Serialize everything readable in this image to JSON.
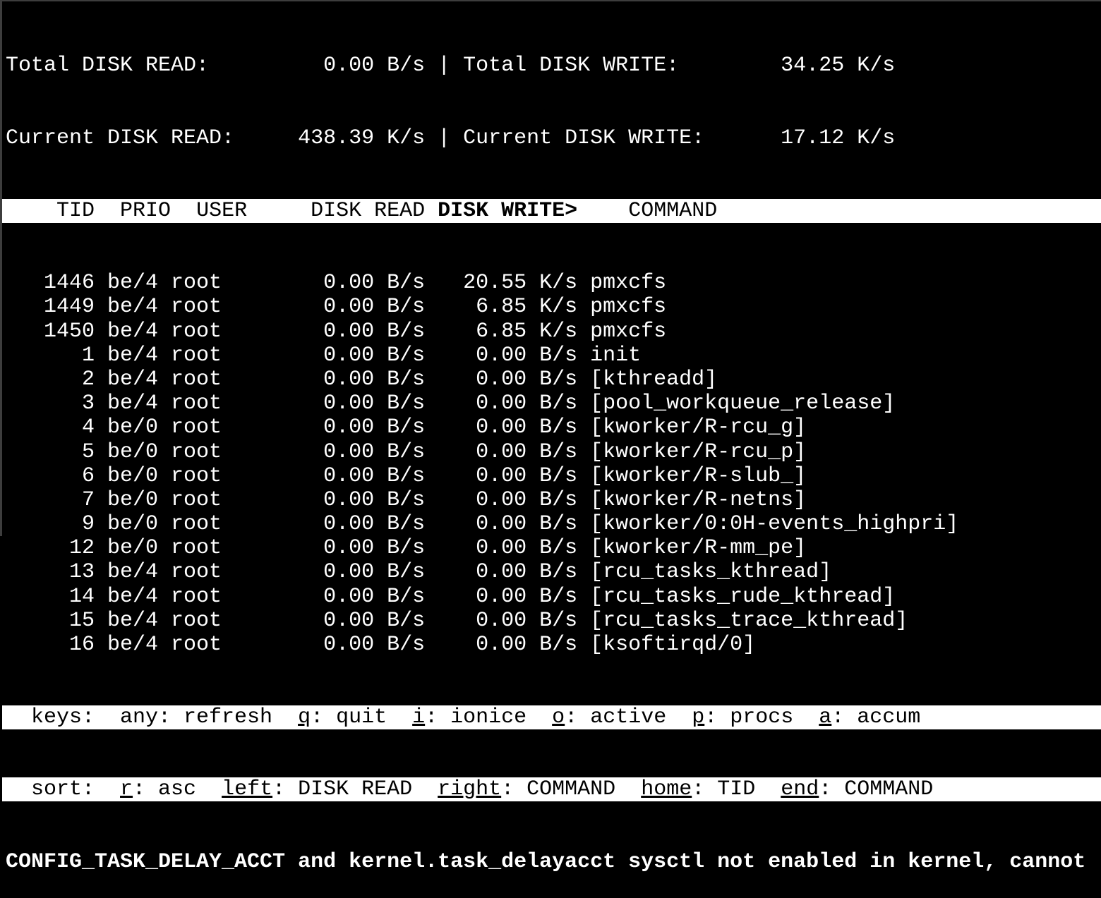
{
  "app": "iotop",
  "colors": {
    "background": "#000000",
    "foreground": "#ffffff",
    "bar_background": "#ffffff",
    "bar_foreground": "#000000",
    "border": "#3d3d3d"
  },
  "summary": {
    "separator": "|",
    "rows": [
      {
        "left_label": "Total DISK READ:",
        "left_value": "0.00 B/s",
        "right_label": "Total DISK WRITE:",
        "right_value": "34.25 K/s"
      },
      {
        "left_label": "Current DISK READ:",
        "left_value": "438.39 K/s",
        "right_label": "Current DISK WRITE:",
        "right_value": "17.12 K/s"
      }
    ]
  },
  "table": {
    "columns": [
      "TID",
      "PRIO",
      "USER",
      "DISK READ",
      "DISK WRITE>",
      "COMMAND"
    ],
    "sorted_column": "DISK WRITE>",
    "rows": [
      {
        "tid": "1446",
        "prio": "be/4",
        "user": "root",
        "disk_read": "0.00 B/s",
        "disk_write": "20.55 K/s",
        "command": "pmxcfs"
      },
      {
        "tid": "1449",
        "prio": "be/4",
        "user": "root",
        "disk_read": "0.00 B/s",
        "disk_write": "6.85 K/s",
        "command": "pmxcfs"
      },
      {
        "tid": "1450",
        "prio": "be/4",
        "user": "root",
        "disk_read": "0.00 B/s",
        "disk_write": "6.85 K/s",
        "command": "pmxcfs"
      },
      {
        "tid": "1",
        "prio": "be/4",
        "user": "root",
        "disk_read": "0.00 B/s",
        "disk_write": "0.00 B/s",
        "command": "init"
      },
      {
        "tid": "2",
        "prio": "be/4",
        "user": "root",
        "disk_read": "0.00 B/s",
        "disk_write": "0.00 B/s",
        "command": "[kthreadd]"
      },
      {
        "tid": "3",
        "prio": "be/4",
        "user": "root",
        "disk_read": "0.00 B/s",
        "disk_write": "0.00 B/s",
        "command": "[pool_workqueue_release]"
      },
      {
        "tid": "4",
        "prio": "be/0",
        "user": "root",
        "disk_read": "0.00 B/s",
        "disk_write": "0.00 B/s",
        "command": "[kworker/R-rcu_g]"
      },
      {
        "tid": "5",
        "prio": "be/0",
        "user": "root",
        "disk_read": "0.00 B/s",
        "disk_write": "0.00 B/s",
        "command": "[kworker/R-rcu_p]"
      },
      {
        "tid": "6",
        "prio": "be/0",
        "user": "root",
        "disk_read": "0.00 B/s",
        "disk_write": "0.00 B/s",
        "command": "[kworker/R-slub_]"
      },
      {
        "tid": "7",
        "prio": "be/0",
        "user": "root",
        "disk_read": "0.00 B/s",
        "disk_write": "0.00 B/s",
        "command": "[kworker/R-netns]"
      },
      {
        "tid": "9",
        "prio": "be/0",
        "user": "root",
        "disk_read": "0.00 B/s",
        "disk_write": "0.00 B/s",
        "command": "[kworker/0:0H-events_highpri]"
      },
      {
        "tid": "12",
        "prio": "be/0",
        "user": "root",
        "disk_read": "0.00 B/s",
        "disk_write": "0.00 B/s",
        "command": "[kworker/R-mm_pe]"
      },
      {
        "tid": "13",
        "prio": "be/4",
        "user": "root",
        "disk_read": "0.00 B/s",
        "disk_write": "0.00 B/s",
        "command": "[rcu_tasks_kthread]"
      },
      {
        "tid": "14",
        "prio": "be/4",
        "user": "root",
        "disk_read": "0.00 B/s",
        "disk_write": "0.00 B/s",
        "command": "[rcu_tasks_rude_kthread]"
      },
      {
        "tid": "15",
        "prio": "be/4",
        "user": "root",
        "disk_read": "0.00 B/s",
        "disk_write": "0.00 B/s",
        "command": "[rcu_tasks_trace_kthread]"
      },
      {
        "tid": "16",
        "prio": "be/4",
        "user": "root",
        "disk_read": "0.00 B/s",
        "disk_write": "0.00 B/s",
        "command": "[ksoftirqd/0]"
      }
    ]
  },
  "footer": {
    "keys_segments": [
      {
        "text": "  keys:  any: refresh  ",
        "underline": false
      },
      {
        "text": "q",
        "underline": true
      },
      {
        "text": ": quit  ",
        "underline": false
      },
      {
        "text": "i",
        "underline": true
      },
      {
        "text": ": ionice  ",
        "underline": false
      },
      {
        "text": "o",
        "underline": true
      },
      {
        "text": ": active  ",
        "underline": false
      },
      {
        "text": "p",
        "underline": true
      },
      {
        "text": ": procs  ",
        "underline": false
      },
      {
        "text": "a",
        "underline": true
      },
      {
        "text": ": accum",
        "underline": false
      }
    ],
    "sort_segments": [
      {
        "text": "  sort:  ",
        "underline": false
      },
      {
        "text": "r",
        "underline": true
      },
      {
        "text": ": asc  ",
        "underline": false
      },
      {
        "text": "left",
        "underline": true
      },
      {
        "text": ": DISK READ  ",
        "underline": false
      },
      {
        "text": "right",
        "underline": true
      },
      {
        "text": ": COMMAND  ",
        "underline": false
      },
      {
        "text": "home",
        "underline": true
      },
      {
        "text": ": TID  ",
        "underline": false
      },
      {
        "text": "end",
        "underline": true
      },
      {
        "text": ": COMMAND",
        "underline": false
      }
    ],
    "warning": "CONFIG_TASK_DELAY_ACCT and kernel.task_delayacct sysctl not enabled in kernel, cannot"
  }
}
